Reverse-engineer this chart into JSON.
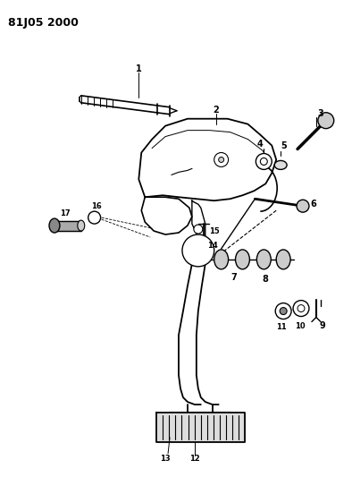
{
  "title": "81J05 2000",
  "bg_color": "#ffffff",
  "line_color": "#000000",
  "fig_width": 3.94,
  "fig_height": 5.33,
  "dpi": 100
}
